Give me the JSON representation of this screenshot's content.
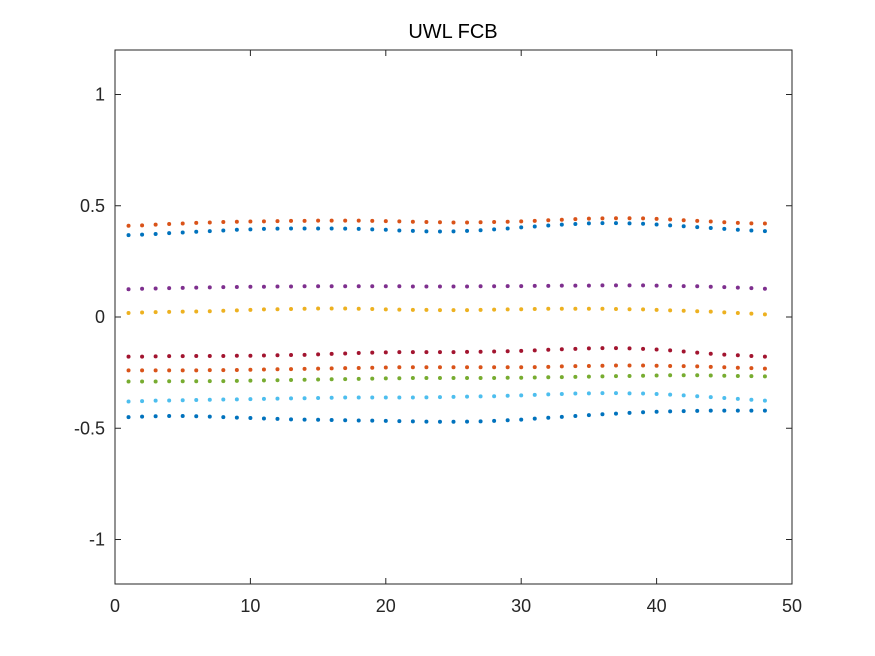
{
  "chart_data": {
    "type": "scatter",
    "title": "UWL FCB",
    "xlabel": "",
    "ylabel": "",
    "xlim": [
      0,
      50
    ],
    "ylim": [
      -1.2,
      1.2
    ],
    "xticks": [
      0,
      10,
      20,
      30,
      40,
      50
    ],
    "xtick_labels": [
      "0",
      "10",
      "20",
      "30",
      "40",
      "50"
    ],
    "yticks": [
      -1,
      -0.5,
      0,
      0.5,
      1
    ],
    "ytick_labels": [
      "-1",
      "-0.5",
      "0",
      "0.5",
      "1"
    ],
    "grid": false,
    "x": [
      1,
      2,
      3,
      4,
      5,
      6,
      7,
      8,
      9,
      10,
      11,
      12,
      13,
      14,
      15,
      16,
      17,
      18,
      19,
      20,
      21,
      22,
      23,
      24,
      25,
      26,
      27,
      28,
      29,
      30,
      31,
      32,
      33,
      34,
      35,
      36,
      37,
      38,
      39,
      40,
      41,
      42,
      43,
      44,
      45,
      46,
      47,
      48
    ],
    "series": [
      {
        "color": "#D95319",
        "values": [
          0.41,
          0.412,
          0.415,
          0.418,
          0.42,
          0.423,
          0.425,
          0.427,
          0.428,
          0.429,
          0.43,
          0.431,
          0.432,
          0.432,
          0.433,
          0.433,
          0.433,
          0.433,
          0.432,
          0.431,
          0.43,
          0.428,
          0.427,
          0.426,
          0.425,
          0.425,
          0.426,
          0.427,
          0.428,
          0.43,
          0.432,
          0.435,
          0.437,
          0.44,
          0.442,
          0.443,
          0.444,
          0.444,
          0.443,
          0.441,
          0.438,
          0.435,
          0.432,
          0.429,
          0.426,
          0.423,
          0.421,
          0.42
        ]
      },
      {
        "color": "#0072BD",
        "values": [
          0.368,
          0.37,
          0.373,
          0.377,
          0.38,
          0.383,
          0.386,
          0.389,
          0.392,
          0.394,
          0.396,
          0.397,
          0.398,
          0.398,
          0.398,
          0.398,
          0.397,
          0.396,
          0.394,
          0.392,
          0.389,
          0.387,
          0.385,
          0.384,
          0.385,
          0.387,
          0.39,
          0.394,
          0.398,
          0.403,
          0.407,
          0.411,
          0.415,
          0.418,
          0.421,
          0.422,
          0.422,
          0.421,
          0.419,
          0.416,
          0.412,
          0.408,
          0.404,
          0.4,
          0.396,
          0.392,
          0.389,
          0.386
        ]
      },
      {
        "color": "#7E2F8E",
        "values": [
          0.125,
          0.127,
          0.128,
          0.13,
          0.131,
          0.132,
          0.133,
          0.134,
          0.135,
          0.136,
          0.136,
          0.137,
          0.137,
          0.138,
          0.138,
          0.138,
          0.138,
          0.138,
          0.138,
          0.138,
          0.138,
          0.137,
          0.137,
          0.137,
          0.137,
          0.137,
          0.138,
          0.138,
          0.139,
          0.139,
          0.14,
          0.14,
          0.141,
          0.141,
          0.141,
          0.142,
          0.142,
          0.142,
          0.142,
          0.141,
          0.14,
          0.139,
          0.138,
          0.136,
          0.134,
          0.132,
          0.13,
          0.127
        ]
      },
      {
        "color": "#EDB120",
        "values": [
          0.018,
          0.02,
          0.022,
          0.023,
          0.024,
          0.025,
          0.026,
          0.028,
          0.03,
          0.032,
          0.034,
          0.035,
          0.036,
          0.037,
          0.038,
          0.038,
          0.038,
          0.037,
          0.036,
          0.034,
          0.033,
          0.032,
          0.032,
          0.031,
          0.031,
          0.031,
          0.032,
          0.033,
          0.034,
          0.035,
          0.036,
          0.037,
          0.037,
          0.037,
          0.037,
          0.037,
          0.036,
          0.035,
          0.034,
          0.032,
          0.03,
          0.028,
          0.026,
          0.024,
          0.021,
          0.018,
          0.015,
          0.012
        ]
      },
      {
        "color": "#A2142F",
        "values": [
          -0.178,
          -0.178,
          -0.177,
          -0.176,
          -0.176,
          -0.175,
          -0.175,
          -0.175,
          -0.174,
          -0.174,
          -0.173,
          -0.172,
          -0.171,
          -0.17,
          -0.168,
          -0.166,
          -0.164,
          -0.162,
          -0.16,
          -0.159,
          -0.158,
          -0.158,
          -0.158,
          -0.158,
          -0.158,
          -0.157,
          -0.156,
          -0.155,
          -0.154,
          -0.152,
          -0.15,
          -0.147,
          -0.145,
          -0.143,
          -0.141,
          -0.14,
          -0.14,
          -0.141,
          -0.143,
          -0.146,
          -0.15,
          -0.155,
          -0.16,
          -0.165,
          -0.169,
          -0.172,
          -0.175,
          -0.178
        ]
      },
      {
        "color": "#D95319",
        "values": [
          -0.24,
          -0.24,
          -0.24,
          -0.24,
          -0.24,
          -0.24,
          -0.239,
          -0.239,
          -0.238,
          -0.237,
          -0.236,
          -0.235,
          -0.234,
          -0.233,
          -0.232,
          -0.231,
          -0.23,
          -0.229,
          -0.228,
          -0.227,
          -0.226,
          -0.226,
          -0.226,
          -0.226,
          -0.226,
          -0.226,
          -0.226,
          -0.226,
          -0.226,
          -0.226,
          -0.225,
          -0.224,
          -0.222,
          -0.221,
          -0.22,
          -0.219,
          -0.218,
          -0.218,
          -0.218,
          -0.219,
          -0.22,
          -0.221,
          -0.222,
          -0.224,
          -0.226,
          -0.228,
          -0.23,
          -0.232
        ]
      },
      {
        "color": "#77AC30",
        "values": [
          -0.29,
          -0.29,
          -0.29,
          -0.289,
          -0.289,
          -0.289,
          -0.288,
          -0.288,
          -0.287,
          -0.286,
          -0.285,
          -0.284,
          -0.283,
          -0.282,
          -0.281,
          -0.28,
          -0.279,
          -0.278,
          -0.277,
          -0.276,
          -0.275,
          -0.274,
          -0.274,
          -0.274,
          -0.274,
          -0.274,
          -0.274,
          -0.274,
          -0.273,
          -0.273,
          -0.272,
          -0.271,
          -0.27,
          -0.269,
          -0.268,
          -0.267,
          -0.266,
          -0.265,
          -0.264,
          -0.263,
          -0.262,
          -0.262,
          -0.262,
          -0.263,
          -0.264,
          -0.265,
          -0.266,
          -0.267
        ]
      },
      {
        "color": "#4DBEEE",
        "values": [
          -0.38,
          -0.378,
          -0.376,
          -0.375,
          -0.374,
          -0.373,
          -0.372,
          -0.371,
          -0.37,
          -0.369,
          -0.368,
          -0.367,
          -0.366,
          -0.365,
          -0.364,
          -0.363,
          -0.362,
          -0.362,
          -0.362,
          -0.362,
          -0.362,
          -0.362,
          -0.361,
          -0.36,
          -0.359,
          -0.358,
          -0.357,
          -0.356,
          -0.354,
          -0.352,
          -0.35,
          -0.348,
          -0.346,
          -0.344,
          -0.343,
          -0.342,
          -0.342,
          -0.343,
          -0.344,
          -0.346,
          -0.349,
          -0.352,
          -0.356,
          -0.36,
          -0.364,
          -0.368,
          -0.372,
          -0.376
        ]
      },
      {
        "color": "#0072BD",
        "values": [
          -0.45,
          -0.448,
          -0.446,
          -0.445,
          -0.445,
          -0.446,
          -0.448,
          -0.45,
          -0.452,
          -0.454,
          -0.456,
          -0.458,
          -0.46,
          -0.461,
          -0.462,
          -0.463,
          -0.464,
          -0.465,
          -0.466,
          -0.467,
          -0.468,
          -0.469,
          -0.47,
          -0.471,
          -0.471,
          -0.47,
          -0.469,
          -0.467,
          -0.464,
          -0.461,
          -0.457,
          -0.453,
          -0.449,
          -0.445,
          -0.441,
          -0.437,
          -0.434,
          -0.431,
          -0.428,
          -0.426,
          -0.424,
          -0.423,
          -0.422,
          -0.421,
          -0.421,
          -0.421,
          -0.421,
          -0.421
        ]
      }
    ]
  }
}
